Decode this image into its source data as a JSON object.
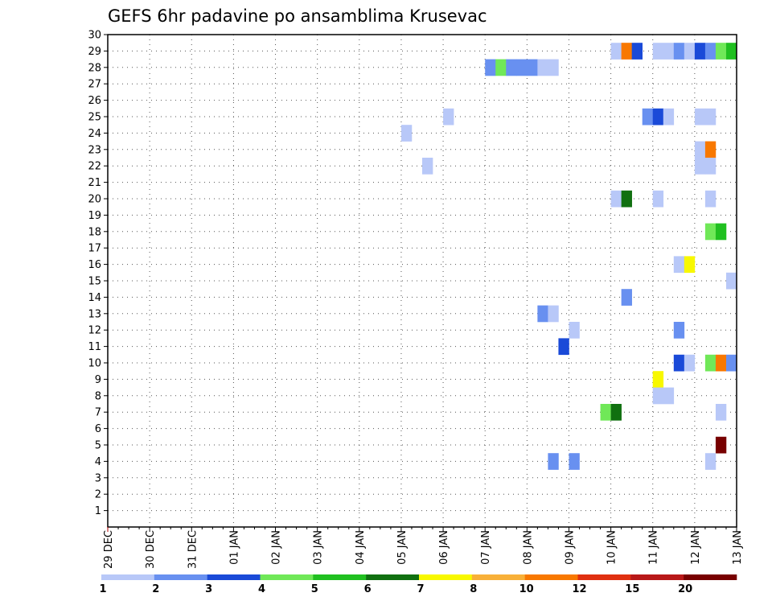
{
  "chart_data": {
    "type": "heatmap",
    "title": "GEFS 6hr padavine po ansamblima Krusevac",
    "xlabel": "",
    "ylabel": "",
    "x_ticks": [
      "29 DEC",
      "30 DEC",
      "31 DEC",
      "01 JAN",
      "02 JAN",
      "03 JAN",
      "04 JAN",
      "05 JAN",
      "06 JAN",
      "07 JAN",
      "08 JAN",
      "09 JAN",
      "10 JAN",
      "11 JAN",
      "12 JAN",
      "13 JAN"
    ],
    "y_ticks": [
      "1",
      "2",
      "3",
      "4",
      "5",
      "6",
      "7",
      "8",
      "9",
      "10",
      "11",
      "12",
      "13",
      "14",
      "15",
      "16",
      "17",
      "18",
      "19",
      "20",
      "21",
      "22",
      "23",
      "24",
      "25",
      "26",
      "27",
      "28",
      "29",
      "30"
    ],
    "xlim": [
      0,
      60
    ],
    "ylim": [
      0,
      30
    ],
    "grid": true,
    "colorbar": {
      "labels": [
        "1",
        "2",
        "3",
        "4",
        "5",
        "6",
        "7",
        "8",
        "10",
        "12",
        "15",
        "20"
      ],
      "colors": [
        "#b8c8f8",
        "#6890f0",
        "#1a4ad8",
        "#70e858",
        "#20c020",
        "#107010",
        "#f8f800",
        "#f8b038",
        "#f87800",
        "#e03010",
        "#b81818",
        "#780000"
      ]
    },
    "cells": [
      {
        "t": 48.5,
        "m": 29,
        "c": 1
      },
      {
        "t": 49.5,
        "m": 29,
        "c": 9
      },
      {
        "t": 50.5,
        "m": 29,
        "c": 3
      },
      {
        "t": 52.5,
        "m": 29,
        "c": 1
      },
      {
        "t": 53.5,
        "m": 29,
        "c": 1
      },
      {
        "t": 54.5,
        "m": 29,
        "c": 2
      },
      {
        "t": 55.5,
        "m": 29,
        "c": 1
      },
      {
        "t": 56.5,
        "m": 29,
        "c": 3
      },
      {
        "t": 57.5,
        "m": 29,
        "c": 2
      },
      {
        "t": 58.5,
        "m": 29,
        "c": 4
      },
      {
        "t": 59.5,
        "m": 29,
        "c": 5
      },
      {
        "t": 36.5,
        "m": 28,
        "c": 2
      },
      {
        "t": 37.5,
        "m": 28,
        "c": 4
      },
      {
        "t": 38.5,
        "m": 28,
        "c": 2
      },
      {
        "t": 39.5,
        "m": 28,
        "c": 2
      },
      {
        "t": 40.5,
        "m": 28,
        "c": 2
      },
      {
        "t": 41.5,
        "m": 28,
        "c": 1
      },
      {
        "t": 42.5,
        "m": 28,
        "c": 1
      },
      {
        "t": 32.5,
        "m": 25,
        "c": 1
      },
      {
        "t": 51.5,
        "m": 25,
        "c": 2
      },
      {
        "t": 52.5,
        "m": 25,
        "c": 3
      },
      {
        "t": 53.5,
        "m": 25,
        "c": 1
      },
      {
        "t": 56.5,
        "m": 25,
        "c": 1
      },
      {
        "t": 57.5,
        "m": 25,
        "c": 1
      },
      {
        "t": 28.5,
        "m": 24,
        "c": 1
      },
      {
        "t": 56.5,
        "m": 23,
        "c": 1
      },
      {
        "t": 57.5,
        "m": 23,
        "c": 9
      },
      {
        "t": 30.5,
        "m": 22,
        "c": 1
      },
      {
        "t": 56.5,
        "m": 22,
        "c": 1
      },
      {
        "t": 57.5,
        "m": 22,
        "c": 1
      },
      {
        "t": 48.5,
        "m": 20,
        "c": 1
      },
      {
        "t": 49.5,
        "m": 20,
        "c": 6
      },
      {
        "t": 52.5,
        "m": 20,
        "c": 1
      },
      {
        "t": 57.5,
        "m": 20,
        "c": 1
      },
      {
        "t": 57.5,
        "m": 18,
        "c": 4
      },
      {
        "t": 58.5,
        "m": 18,
        "c": 5
      },
      {
        "t": 54.5,
        "m": 16,
        "c": 1
      },
      {
        "t": 55.5,
        "m": 16,
        "c": 7
      },
      {
        "t": 59.5,
        "m": 15,
        "c": 1
      },
      {
        "t": 49.5,
        "m": 14,
        "c": 2
      },
      {
        "t": 41.5,
        "m": 13,
        "c": 2
      },
      {
        "t": 42.5,
        "m": 13,
        "c": 1
      },
      {
        "t": 44.5,
        "m": 12,
        "c": 1
      },
      {
        "t": 54.5,
        "m": 12,
        "c": 2
      },
      {
        "t": 43.5,
        "m": 11,
        "c": 3
      },
      {
        "t": 54.5,
        "m": 10,
        "c": 3
      },
      {
        "t": 55.5,
        "m": 10,
        "c": 1
      },
      {
        "t": 57.5,
        "m": 10,
        "c": 4
      },
      {
        "t": 58.5,
        "m": 10,
        "c": 9
      },
      {
        "t": 59.5,
        "m": 10,
        "c": 2
      },
      {
        "t": 52.5,
        "m": 9,
        "c": 7
      },
      {
        "t": 52.5,
        "m": 8,
        "c": 1
      },
      {
        "t": 53.5,
        "m": 8,
        "c": 1
      },
      {
        "t": 47.5,
        "m": 7,
        "c": 4
      },
      {
        "t": 48.5,
        "m": 7,
        "c": 6
      },
      {
        "t": 58.5,
        "m": 7,
        "c": 1
      },
      {
        "t": 58.5,
        "m": 5,
        "c": 12
      },
      {
        "t": 42.5,
        "m": 4,
        "c": 2
      },
      {
        "t": 44.5,
        "m": 4,
        "c": 2
      },
      {
        "t": 57.5,
        "m": 4,
        "c": 1
      }
    ]
  }
}
